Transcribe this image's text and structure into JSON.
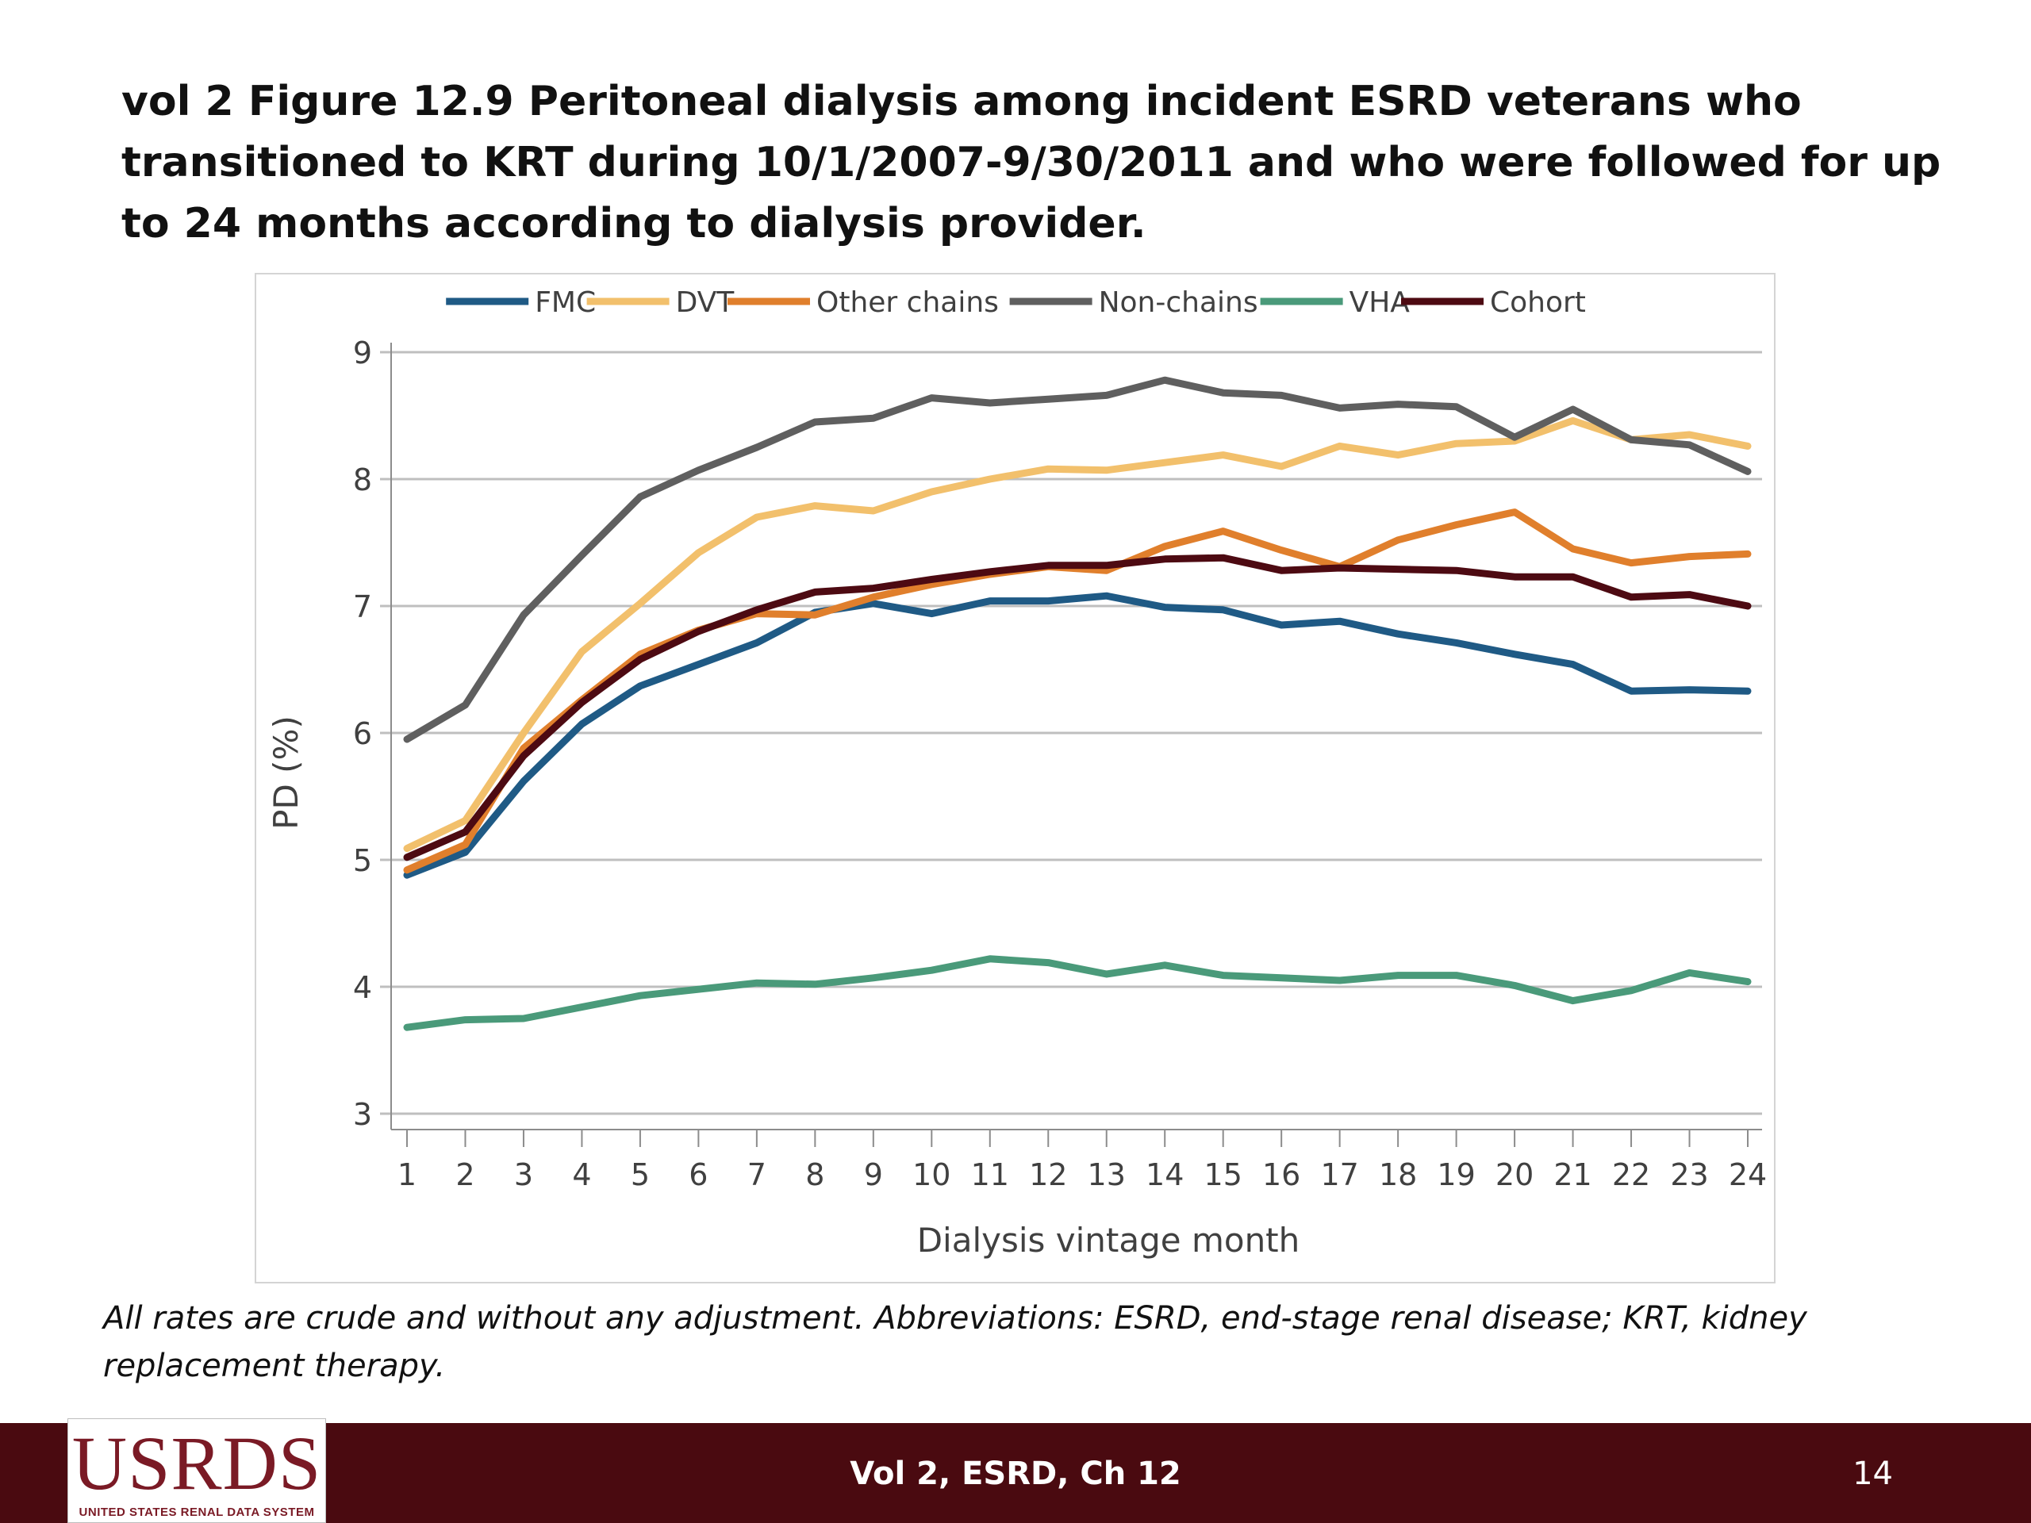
{
  "slide": {
    "title": "vol 2 Figure 12.9  Peritoneal dialysis among incident ESRD veterans who transitioned to KRT during 10/1/2007-9/30/2011 and who were followed for up to 24 months according to dialysis provider.",
    "footnote": "All rates are crude and without any adjustment. Abbreviations: ESRD, end-stage renal disease; KRT, kidney replacement therapy.",
    "footer_center": "Vol 2, ESRD, Ch 12",
    "page_number": "14",
    "logo_text": "USRDS",
    "logo_subtext": "UNITED STATES RENAL DATA SYSTEM"
  },
  "chart_data": {
    "type": "line",
    "title": "",
    "xlabel": "Dialysis vintage month",
    "ylabel": "PD (%)",
    "x": [
      1,
      2,
      3,
      4,
      5,
      6,
      7,
      8,
      9,
      10,
      11,
      12,
      13,
      14,
      15,
      16,
      17,
      18,
      19,
      20,
      21,
      22,
      23,
      24
    ],
    "ylim": [
      3,
      9
    ],
    "yticks": [
      3,
      4,
      5,
      6,
      7,
      8,
      9
    ],
    "grid": true,
    "legend_position": "top",
    "series": [
      {
        "name": "FMC",
        "color": "#1f5a85",
        "values": [
          4.88,
          5.06,
          5.62,
          6.07,
          6.37,
          6.54,
          6.71,
          6.95,
          7.02,
          6.94,
          7.04,
          7.04,
          7.08,
          6.99,
          6.97,
          6.85,
          6.88,
          6.78,
          6.71,
          6.62,
          6.54,
          6.33,
          6.34,
          6.33
        ]
      },
      {
        "name": "DVT",
        "color": "#f2c06c",
        "values": [
          5.09,
          5.31,
          6.0,
          6.64,
          7.02,
          7.42,
          7.7,
          7.79,
          7.75,
          7.9,
          8.0,
          8.08,
          8.07,
          8.13,
          8.19,
          8.1,
          8.26,
          8.19,
          8.28,
          8.3,
          8.46,
          8.31,
          8.35,
          8.26
        ]
      },
      {
        "name": "Other chains",
        "color": "#e07f2c",
        "values": [
          4.92,
          5.12,
          5.88,
          6.26,
          6.62,
          6.81,
          6.94,
          6.93,
          7.07,
          7.17,
          7.25,
          7.31,
          7.28,
          7.47,
          7.59,
          7.44,
          7.31,
          7.52,
          7.64,
          7.74,
          7.45,
          7.34,
          7.39,
          7.41
        ]
      },
      {
        "name": "Non-chains",
        "color": "#5f5f5f",
        "values": [
          5.95,
          6.22,
          6.93,
          7.4,
          7.86,
          8.07,
          8.25,
          8.45,
          8.48,
          8.64,
          8.6,
          8.63,
          8.66,
          8.78,
          8.68,
          8.66,
          8.56,
          8.59,
          8.57,
          8.33,
          8.55,
          8.31,
          8.27,
          8.06
        ]
      },
      {
        "name": "VHA",
        "color": "#4a9a7a",
        "values": [
          3.68,
          3.74,
          3.75,
          3.84,
          3.93,
          3.98,
          4.03,
          4.02,
          4.07,
          4.13,
          4.22,
          4.19,
          4.1,
          4.17,
          4.09,
          4.07,
          4.05,
          4.09,
          4.09,
          4.01,
          3.89,
          3.97,
          4.11,
          4.04
        ]
      },
      {
        "name": "Cohort",
        "color": "#4d0a12",
        "values": [
          5.02,
          5.22,
          5.82,
          6.24,
          6.58,
          6.8,
          6.97,
          7.11,
          7.14,
          7.21,
          7.27,
          7.32,
          7.32,
          7.37,
          7.38,
          7.28,
          7.3,
          7.29,
          7.28,
          7.23,
          7.23,
          7.07,
          7.09,
          7.0
        ]
      }
    ]
  }
}
